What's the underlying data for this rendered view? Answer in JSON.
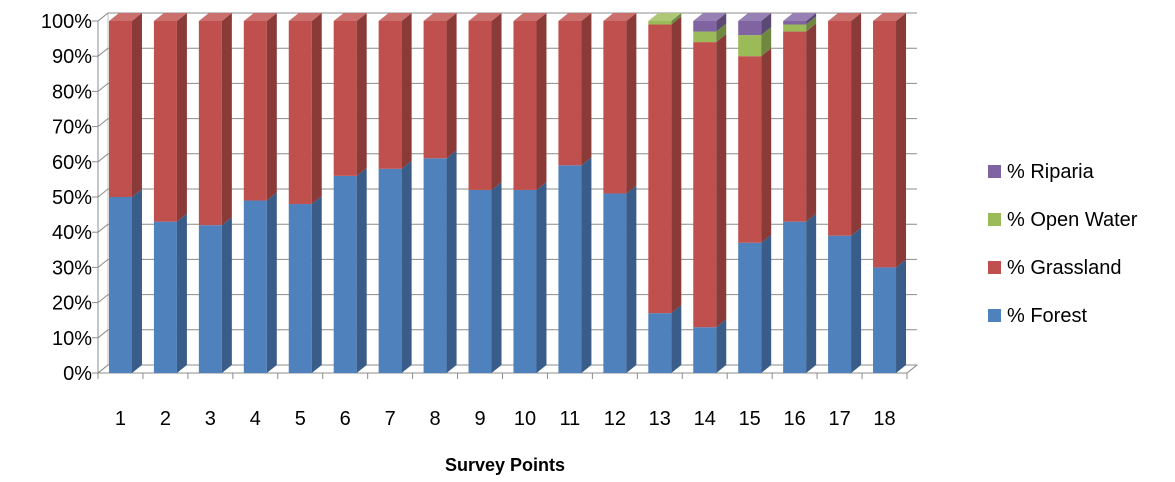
{
  "chart_data": {
    "type": "bar",
    "stacked": "percent",
    "three_d": true,
    "xlabel": "Survey Points",
    "ylabel": "",
    "ylim": [
      0,
      100
    ],
    "y_ticks": [
      "0%",
      "10%",
      "20%",
      "30%",
      "40%",
      "50%",
      "60%",
      "70%",
      "80%",
      "90%",
      "100%"
    ],
    "categories": [
      "1",
      "2",
      "3",
      "4",
      "5",
      "6",
      "7",
      "8",
      "9",
      "10",
      "11",
      "12",
      "13",
      "14",
      "15",
      "16",
      "17",
      "18"
    ],
    "series": [
      {
        "name": "% Forest",
        "color": "#4F81BD",
        "values": [
          50,
          43,
          42,
          49,
          48,
          56,
          58,
          61,
          52,
          52,
          59,
          51,
          17,
          13,
          37,
          43,
          39,
          30
        ]
      },
      {
        "name": "% Grassland",
        "color": "#C0504D",
        "values": [
          50,
          57,
          58,
          51,
          52,
          44,
          42,
          39,
          48,
          48,
          41,
          49,
          82,
          81,
          53,
          54,
          61,
          70
        ]
      },
      {
        "name": "% Open Water",
        "color": "#9BBB59",
        "values": [
          0,
          0,
          0,
          0,
          0,
          0,
          0,
          0,
          0,
          0,
          0,
          0,
          1,
          3,
          6,
          2,
          0,
          0
        ]
      },
      {
        "name": "% Riparia",
        "color": "#8064A2",
        "values": [
          0,
          0,
          0,
          0,
          0,
          0,
          0,
          0,
          0,
          0,
          0,
          0,
          0,
          3,
          4,
          1,
          0,
          0
        ]
      }
    ],
    "legend_position": "right",
    "grid": true
  }
}
